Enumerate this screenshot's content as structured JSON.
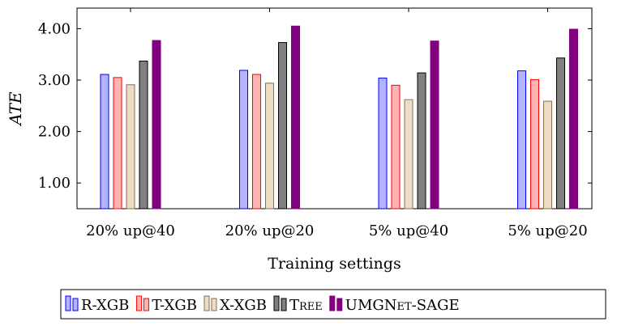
{
  "chart_data": {
    "type": "bar",
    "title": "",
    "xlabel": "Training settings",
    "ylabel": "ATE",
    "ylim": [
      0.5,
      4.4
    ],
    "yticks": [
      1.0,
      2.0,
      3.0,
      4.0
    ],
    "ytick_labels": [
      "1.00",
      "2.00",
      "3.00",
      "4.00"
    ],
    "grid": false,
    "legend_position": "bottom",
    "categories": [
      "20% up@40",
      "20% up@20",
      "5% up@40",
      "5% up@20"
    ],
    "series": [
      {
        "name": "R-XGB",
        "fill": "#b3b3ff",
        "stroke": "#0000ff",
        "values": [
          3.11,
          3.19,
          3.04,
          3.18
        ]
      },
      {
        "name": "T-XGB",
        "fill": "#ffb3b3",
        "stroke": "#ff0000",
        "values": [
          3.05,
          3.11,
          2.9,
          3.01
        ]
      },
      {
        "name": "X-XGB",
        "fill": "#ecdcc6",
        "stroke": "#8b6e4e",
        "values": [
          2.91,
          2.94,
          2.62,
          2.59
        ]
      },
      {
        "name": "Tree",
        "fill": "#808080",
        "stroke": "#000000",
        "values": [
          3.37,
          3.73,
          3.14,
          3.43
        ]
      },
      {
        "name": "UMGNet-SAGE",
        "fill": "#800080",
        "stroke": "#800080",
        "values": [
          3.77,
          4.05,
          3.76,
          3.99
        ]
      }
    ]
  }
}
